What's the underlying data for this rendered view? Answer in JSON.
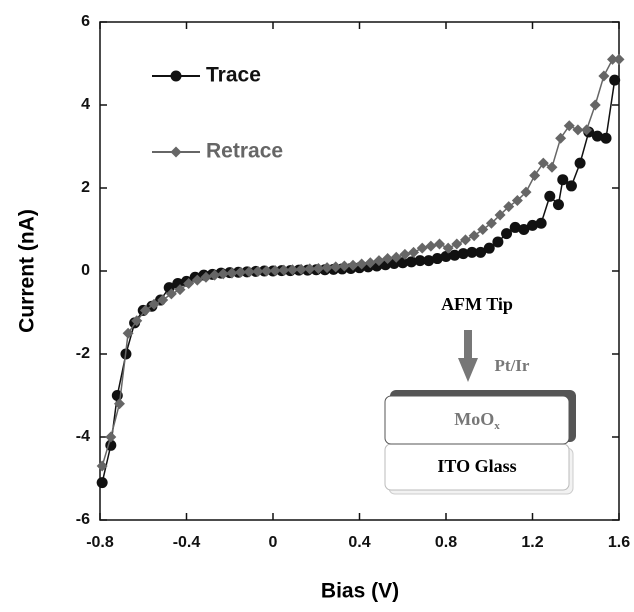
{
  "chart_data": {
    "type": "line",
    "xlabel": "Bias (V)",
    "ylabel": "Current (nA)",
    "xlim": [
      -0.8,
      1.6
    ],
    "xticks": [
      -0.8,
      -0.4,
      0,
      0.4,
      0.8,
      1.2,
      1.6
    ],
    "ylim": [
      -6,
      6
    ],
    "yticks": [
      -6,
      -4,
      -2,
      0,
      2,
      4,
      6
    ],
    "legend": "upper left",
    "series": [
      {
        "name": "Trace",
        "color": "#111111",
        "marker": "circle",
        "x": [
          -0.79,
          -0.75,
          -0.72,
          -0.68,
          -0.64,
          -0.6,
          -0.56,
          -0.52,
          -0.48,
          -0.44,
          -0.4,
          -0.36,
          -0.32,
          -0.28,
          -0.24,
          -0.2,
          -0.16,
          -0.12,
          -0.08,
          -0.04,
          0,
          0.04,
          0.08,
          0.12,
          0.16,
          0.2,
          0.24,
          0.28,
          0.32,
          0.36,
          0.4,
          0.44,
          0.48,
          0.52,
          0.56,
          0.6,
          0.64,
          0.68,
          0.72,
          0.76,
          0.8,
          0.84,
          0.88,
          0.92,
          0.96,
          1.0,
          1.04,
          1.08,
          1.12,
          1.16,
          1.2,
          1.24,
          1.28,
          1.32,
          1.34,
          1.38,
          1.42,
          1.46,
          1.5,
          1.54,
          1.58
        ],
        "values": [
          -5.1,
          -4.2,
          -3.0,
          -2.0,
          -1.25,
          -0.95,
          -0.85,
          -0.7,
          -0.4,
          -0.3,
          -0.25,
          -0.15,
          -0.1,
          -0.08,
          -0.05,
          -0.04,
          -0.03,
          -0.02,
          -0.01,
          0,
          0,
          0.01,
          0.01,
          0.02,
          0.02,
          0.03,
          0.03,
          0.04,
          0.05,
          0.06,
          0.08,
          0.1,
          0.12,
          0.15,
          0.18,
          0.2,
          0.22,
          0.25,
          0.25,
          0.3,
          0.35,
          0.38,
          0.42,
          0.45,
          0.45,
          0.55,
          0.7,
          0.9,
          1.05,
          1.0,
          1.1,
          1.15,
          1.8,
          1.6,
          2.2,
          2.05,
          2.6,
          3.35,
          3.25,
          3.2,
          4.6
        ]
      },
      {
        "name": "Retrace",
        "color": "#666666",
        "marker": "diamond",
        "x": [
          -0.79,
          -0.75,
          -0.71,
          -0.67,
          -0.63,
          -0.59,
          -0.55,
          -0.51,
          -0.47,
          -0.43,
          -0.39,
          -0.35,
          -0.31,
          -0.27,
          -0.23,
          -0.19,
          -0.15,
          -0.11,
          -0.07,
          -0.03,
          0.01,
          0.05,
          0.09,
          0.13,
          0.17,
          0.21,
          0.25,
          0.29,
          0.33,
          0.37,
          0.41,
          0.45,
          0.49,
          0.53,
          0.57,
          0.61,
          0.65,
          0.69,
          0.73,
          0.77,
          0.81,
          0.85,
          0.89,
          0.93,
          0.97,
          1.01,
          1.05,
          1.09,
          1.13,
          1.17,
          1.21,
          1.25,
          1.29,
          1.33,
          1.37,
          1.41,
          1.45,
          1.49,
          1.53,
          1.57,
          1.6
        ],
        "values": [
          -4.7,
          -4.0,
          -3.2,
          -1.5,
          -1.2,
          -0.95,
          -0.8,
          -0.7,
          -0.55,
          -0.45,
          -0.3,
          -0.22,
          -0.15,
          -0.1,
          -0.07,
          -0.05,
          -0.03,
          -0.02,
          -0.01,
          0,
          0.01,
          0.02,
          0.03,
          0.04,
          0.05,
          0.06,
          0.08,
          0.1,
          0.12,
          0.14,
          0.17,
          0.2,
          0.25,
          0.3,
          0.33,
          0.4,
          0.45,
          0.55,
          0.6,
          0.65,
          0.55,
          0.65,
          0.75,
          0.85,
          1.0,
          1.15,
          1.35,
          1.55,
          1.7,
          1.9,
          2.3,
          2.6,
          2.5,
          3.2,
          3.5,
          3.4,
          3.4,
          4.0,
          4.7,
          5.1,
          5.1
        ]
      }
    ]
  },
  "inset": {
    "tip": "AFM Tip",
    "tip_material": "Pt/Ir",
    "layer_top": "MoO",
    "layer_top_subscript": "x",
    "layer_bottom": "ITO Glass"
  }
}
